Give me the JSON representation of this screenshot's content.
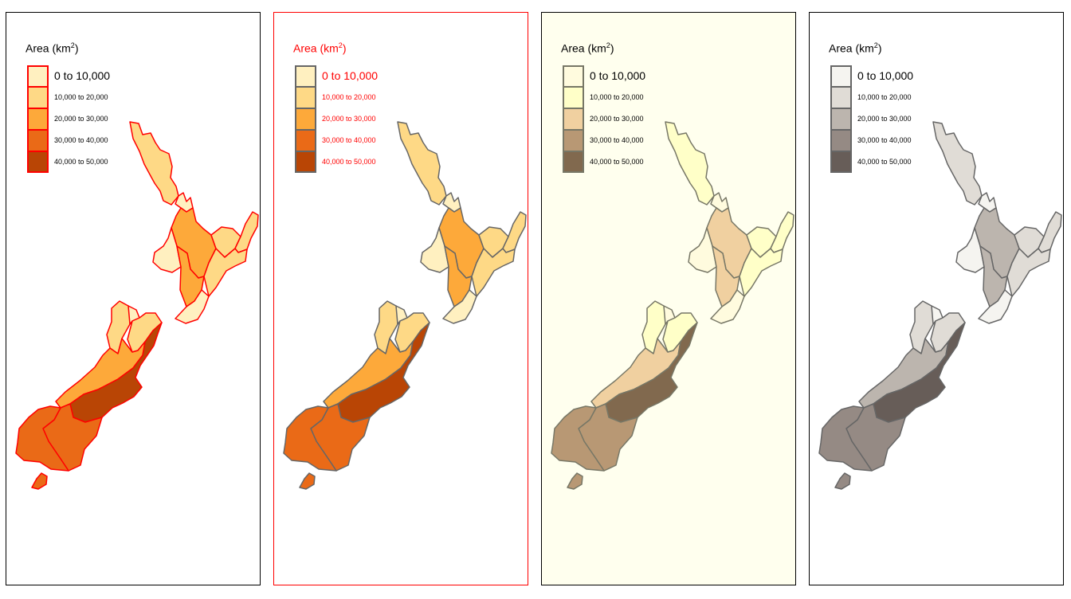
{
  "legend": {
    "title_prefix": "Area (km",
    "title_sup": "2",
    "title_suffix": ")",
    "classes": [
      "0 to 10,000",
      "10,000 to 20,000",
      "20,000 to 30,000",
      "30,000 to 40,000",
      "40,000 to 50,000"
    ]
  },
  "panels": [
    {
      "bg": "#ffffff",
      "frame": "#000000",
      "text_color": "#000000",
      "region_border": "#ff0000",
      "legend_border": "#ff0000",
      "palette": [
        "#fff0c0",
        "#fed986",
        "#fda93a",
        "#ea6a17",
        "#b94505"
      ]
    },
    {
      "bg": "#ffffff",
      "frame": "#ff0000",
      "text_color": "#ff0000",
      "region_border": "#666666",
      "legend_border": "#666666",
      "palette": [
        "#fff0c0",
        "#fed986",
        "#fda93a",
        "#ea6a17",
        "#b94505"
      ]
    },
    {
      "bg": "#ffffee",
      "frame": "#000000",
      "text_color": "#000000",
      "region_border": "#777766",
      "legend_border": "#777766",
      "palette": [
        "#fffbde",
        "#ffffc8",
        "#f0d0a0",
        "#b89874",
        "#81694e"
      ]
    },
    {
      "bg": "#ffffff",
      "frame": "#000000",
      "text_color": "#000000",
      "region_border": "#666666",
      "legend_border": "#666666",
      "palette": [
        "#f5f4f0",
        "#e0dcd6",
        "#bcb5ae",
        "#958a84",
        "#675d58"
      ]
    }
  ],
  "regions": [
    {
      "name": "Northland",
      "class": 1
    },
    {
      "name": "Auckland",
      "class": 0
    },
    {
      "name": "Waikato",
      "class": 2
    },
    {
      "name": "Bay of Plenty",
      "class": 1
    },
    {
      "name": "Gisborne",
      "class": 1
    },
    {
      "name": "Taranaki",
      "class": 0
    },
    {
      "name": "Manawatu-Wanganui",
      "class": 2
    },
    {
      "name": "Hawke's Bay",
      "class": 1
    },
    {
      "name": "Wellington",
      "class": 0
    },
    {
      "name": "Tasman",
      "class": 1
    },
    {
      "name": "Nelson",
      "class": 0
    },
    {
      "name": "Marlborough",
      "class": 1
    },
    {
      "name": "West Coast",
      "class": 2
    },
    {
      "name": "Canterbury",
      "class": 4
    },
    {
      "name": "Otago",
      "class": 3
    },
    {
      "name": "Southland",
      "class": 3
    },
    {
      "name": "Stewart Island",
      "class": 3
    }
  ]
}
